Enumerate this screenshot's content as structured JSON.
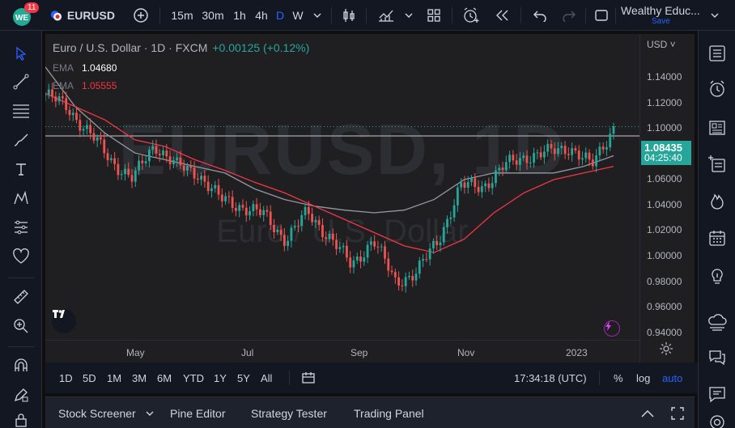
{
  "toolbar": {
    "notification_count": "11",
    "symbol": "EURUSD",
    "intervals": [
      "15m",
      "30m",
      "1h",
      "4h",
      "D",
      "W"
    ],
    "account_name": "Wealthy Educ...",
    "save_label": "Save"
  },
  "chart": {
    "legend_title": "Euro / U.S. Dollar · 1D · FXCM",
    "legend_change": "+0.00125 (+0.12%)",
    "ema": [
      {
        "label": "EMA",
        "value": "1.04680",
        "color": "#ffffff"
      },
      {
        "label": "EMA",
        "value": "1.05555",
        "color": "#f23645"
      }
    ],
    "currency": "USD",
    "watermark_symbol": "EURUSD, 1D",
    "watermark_name": "Euro / U.S. Dollar",
    "price_labels": [
      "1.14000",
      "1.12000",
      "1.10000",
      "1.06000",
      "1.04000",
      "1.02000",
      "1.00000",
      "0.98000",
      "0.96000",
      "0.94000"
    ],
    "current_price": "1.08435",
    "countdown": "04:25:40",
    "time_labels": [
      "May",
      "Jul",
      "Sep",
      "Nov",
      "2023"
    ],
    "colors": {
      "up": "#26a69a",
      "down": "#ef5350",
      "ema_slow": "#9598a1",
      "ema_fast": "#f23645"
    }
  },
  "chart_data": {
    "type": "line",
    "series": [
      {
        "values": [
          1.13,
          1.1,
          1.08,
          1.065,
          1.06,
          1.055,
          1.05,
          1.038,
          1.03,
          1.025,
          1.022,
          1.02,
          1.022,
          1.03,
          1.045,
          1.05,
          1.05,
          1.05,
          1.055,
          1.063
        ]
      },
      {
        "values": [
          1.11,
          1.1,
          1.09,
          1.075,
          1.07,
          1.06,
          1.052,
          1.043,
          1.035,
          1.025,
          1.015,
          1.005,
          0.995,
          0.99,
          1.0,
          1.02,
          1.035,
          1.045,
          1.05,
          1.055
        ]
      },
      {
        "values": [
          1.109,
          1.1,
          1.08,
          1.06,
          1.045,
          1.072,
          1.055,
          1.05,
          1.03,
          1.025,
          1.018,
          1.0,
          1.02,
          1.002,
          0.98,
          1.0,
          0.968,
          0.975,
          1.0,
          1.04,
          1.04,
          1.055,
          1.063,
          1.065,
          1.07,
          1.055,
          1.085
        ]
      }
    ],
    "ylim": [
      0.94,
      1.15
    ]
  },
  "range_bar": {
    "ranges": [
      "1D",
      "5D",
      "1M",
      "3M",
      "6M",
      "YTD",
      "1Y",
      "5Y",
      "All"
    ],
    "clock": "17:34:18 (UTC)",
    "percent_label": "%",
    "log_label": "log",
    "auto_label": "auto"
  },
  "panel_tabs": [
    "Stock Screener",
    "Pine Editor",
    "Strategy Tester",
    "Trading Panel"
  ]
}
